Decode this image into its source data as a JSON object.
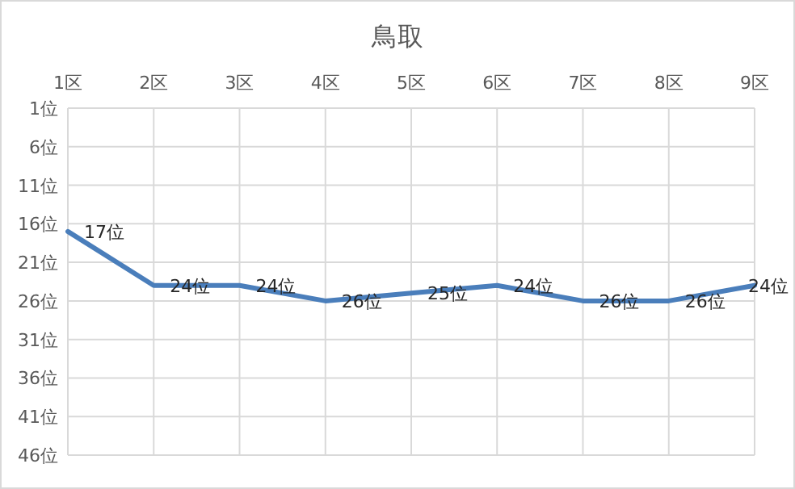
{
  "chart_data": {
    "type": "line",
    "title": "鳥取",
    "categories": [
      "1区",
      "2区",
      "3区",
      "4区",
      "5区",
      "6区",
      "7区",
      "8区",
      "9区"
    ],
    "values": [
      17,
      24,
      24,
      26,
      25,
      24,
      26,
      26,
      24
    ],
    "value_labels": [
      "17位",
      "24位",
      "24位",
      "26位",
      "25位",
      "24位",
      "26位",
      "26位",
      "24位"
    ],
    "color": "#4a7ebb",
    "ylim": [
      46,
      1
    ],
    "yticks": [
      {
        "value": 1,
        "label": "1位"
      },
      {
        "value": 6,
        "label": "6位"
      },
      {
        "value": 11,
        "label": "11位"
      },
      {
        "value": 16,
        "label": "16位"
      },
      {
        "value": 21,
        "label": "21位"
      },
      {
        "value": 26,
        "label": "26位"
      },
      {
        "value": 31,
        "label": "31位"
      },
      {
        "value": 36,
        "label": "36位"
      },
      {
        "value": 41,
        "label": "41位"
      },
      {
        "value": 46,
        "label": "46位"
      }
    ],
    "grid": true
  }
}
